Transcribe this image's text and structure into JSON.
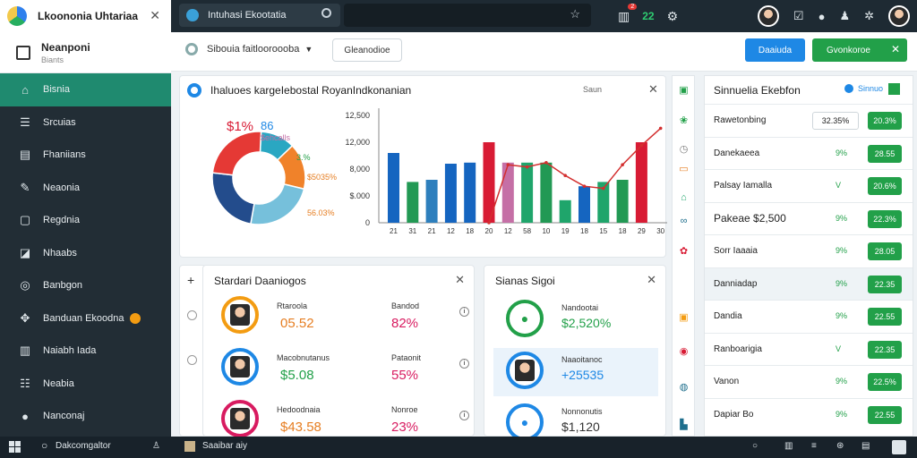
{
  "topbar": {
    "app_title": "Lkoononia Uhtariaa",
    "tab_title": "Intuhasi Ekootatia",
    "notif_count": "2",
    "green_count": "22"
  },
  "sidebar": {
    "header_title": "Neanponi",
    "header_subtitle": "Biants",
    "items": [
      {
        "label": "Bisnia",
        "icon": "home-icon"
      },
      {
        "label": "Srcuias",
        "icon": "list-icon"
      },
      {
        "label": "Fhaniians",
        "icon": "grid-icon"
      },
      {
        "label": "Neaonia",
        "icon": "pen-icon"
      },
      {
        "label": "Regdnia",
        "icon": "chat-icon"
      },
      {
        "label": "Nhaabs",
        "icon": "bell-icon"
      },
      {
        "label": "Banbgon",
        "icon": "target-icon"
      },
      {
        "label": "Banduan Ekoodna",
        "icon": "puzzle-icon"
      },
      {
        "label": "Naiabh Iada",
        "icon": "chart-icon"
      },
      {
        "label": "Neabia",
        "icon": "table-icon"
      },
      {
        "label": "Nanconaj",
        "icon": "message-icon"
      }
    ]
  },
  "toolbar": {
    "selector_label": "Sibouia faitlooroooba",
    "outline_button": "Gleanodioe",
    "blue_button": "Daaiuda",
    "green_button": "Gvonkoroe"
  },
  "chart_card": {
    "title": "Ihaluoes kargeIebostal RoyanIndkonanian",
    "settings_label": "Saun",
    "donut_labels": [
      "$1%",
      "86",
      "$ehcalls",
      "3.%",
      "$5035%",
      "56.03%"
    ]
  },
  "chart_data": {
    "type": "bar",
    "ylim": [
      0,
      100
    ],
    "yticks": [
      "0",
      "$.000",
      "8,000",
      "12,000",
      "12,500"
    ],
    "categories": [
      "21",
      "31",
      "21",
      "12",
      "18",
      "20",
      "12",
      "58",
      "10",
      "19",
      "18",
      "15",
      "18",
      "29",
      "30"
    ],
    "series": [
      {
        "color": "#1565c0",
        "values": [
          65,
          0,
          0,
          55,
          0,
          0,
          0,
          0,
          0,
          0,
          0,
          0,
          0,
          0,
          0
        ]
      },
      {
        "color": "#229954",
        "values": [
          0,
          38,
          0,
          0,
          0,
          0,
          0,
          0,
          0,
          0,
          0,
          0,
          0,
          0,
          0
        ]
      },
      {
        "color": "#2e7fbd",
        "values": [
          0,
          0,
          40,
          0,
          0,
          0,
          0,
          0,
          0,
          0,
          0,
          0,
          0,
          0,
          0
        ]
      },
      {
        "color": "#1565c0",
        "values": [
          0,
          0,
          0,
          0,
          56,
          0,
          0,
          0,
          0,
          0,
          0,
          0,
          0,
          0,
          0
        ]
      }
    ],
    "bars": [
      {
        "color": "#1565c0",
        "value": 65
      },
      {
        "color": "#229954",
        "value": 38
      },
      {
        "color": "#2e7fbd",
        "value": 40
      },
      {
        "color": "#1565c0",
        "value": 55
      },
      {
        "color": "#1565c0",
        "value": 56
      },
      {
        "color": "#d81b34",
        "value": 75
      },
      {
        "color": "#c56fa6",
        "value": 56
      },
      {
        "color": "#1fa56b",
        "value": 56
      },
      {
        "color": "#229954",
        "value": 56
      },
      {
        "color": "#1fa56b",
        "value": 21
      },
      {
        "color": "#1565c0",
        "value": 34
      },
      {
        "color": "#1fa56b",
        "value": 38
      },
      {
        "color": "#229954",
        "value": 40
      },
      {
        "color": "#d81b34",
        "value": 75
      },
      {
        "color": "#d81b34",
        "value": 0
      }
    ],
    "line": {
      "color": "#d32f2f",
      "values": [
        null,
        null,
        null,
        null,
        null,
        0,
        54,
        52,
        56,
        44,
        34,
        32,
        54,
        72,
        88
      ]
    },
    "donut": [
      {
        "color": "#2aa7c2",
        "value": 12
      },
      {
        "color": "#f0822a",
        "value": 16
      },
      {
        "color": "#76c0db",
        "value": 24
      },
      {
        "color": "#234c8c",
        "value": 24
      },
      {
        "color": "#e53935",
        "value": 24
      }
    ]
  },
  "list_card": {
    "title": "Stardari Daaniogos",
    "rows": [
      {
        "label1": "Rtaroola",
        "value1": "05.52",
        "label2": "Bandod",
        "value2": "82%",
        "ring": "#f39c12",
        "v1color": "#e67e22",
        "v2color": "#d81b60"
      },
      {
        "label1": "Macobnutanus",
        "value1": "$5.08",
        "label2": "Pataonit",
        "value2": "55%",
        "ring": "#1e88e5",
        "v1color": "#22a049",
        "v2color": "#d81b60"
      },
      {
        "label1": "Hedoodnaia",
        "value1": "$43.58",
        "label2": "Nonroe",
        "value2": "23%",
        "ring": "#d81b60",
        "v1color": "#e67e22",
        "v2color": "#d81b60"
      }
    ]
  },
  "stat_card": {
    "title": "Sianas Sigoi",
    "rows": [
      {
        "label": "Nandootai",
        "value": "$2,520%",
        "ring": "#22a049",
        "color": "#22a049"
      },
      {
        "label": "Naaoitanoc",
        "value": "+25535",
        "ring": "#1e88e5",
        "color": "#1e88e5"
      },
      {
        "label": "Nonnonutis",
        "value": "$1,120",
        "ring": "#1e88e5",
        "color": "#333333"
      }
    ]
  },
  "panel": {
    "title": "Sinnuelia Ekebfon",
    "badge": "Sinnuo",
    "rows": [
      {
        "label": "Rawetonbing",
        "chip": "32.35%",
        "value": "20.3%",
        "indicator": ""
      },
      {
        "label": "Danekaeea",
        "chip": "",
        "value": "28.55",
        "indicator": "9%"
      },
      {
        "label": "Palsay Iamalla",
        "chip": "",
        "value": "20.6%",
        "indicator": "V"
      },
      {
        "label": "Pakeae $2,500",
        "chip": "",
        "value": "22.3%",
        "indicator": "9%"
      },
      {
        "label": "Sorr Iaaaia",
        "chip": "",
        "value": "28.05",
        "indicator": "9%"
      },
      {
        "label": "Danniadap",
        "chip": "",
        "value": "22.35",
        "indicator": "9%"
      },
      {
        "label": "Dandia",
        "chip": "",
        "value": "22.55",
        "indicator": "9%"
      },
      {
        "label": "Ranboarigia",
        "chip": "",
        "value": "22.35",
        "indicator": "V"
      },
      {
        "label": "Vanon",
        "chip": "",
        "value": "22.5%",
        "indicator": "9%"
      },
      {
        "label": "Dapiar Bo",
        "chip": "",
        "value": "22.55",
        "indicator": "9%"
      }
    ]
  },
  "taskbar": {
    "search_text": "Dakcomgaltor",
    "app_label": "Saaibar aiy"
  }
}
